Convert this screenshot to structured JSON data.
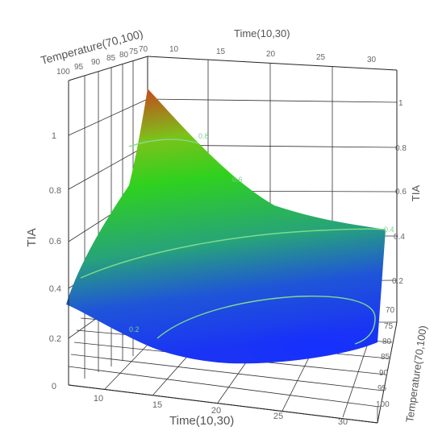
{
  "chart_data": {
    "type": "surface3d",
    "title": "",
    "zlabel": "TIA",
    "zlabel_right": "TIA",
    "x_axis": {
      "label": "Time(10,30)",
      "range": [
        10,
        30
      ],
      "ticks": [
        "10",
        "15",
        "20",
        "25",
        "30"
      ]
    },
    "y_axis": {
      "label": "Temperature(70,100)",
      "range": [
        70,
        100
      ],
      "ticks": [
        "70",
        "75",
        "80",
        "85",
        "90",
        "95",
        "100"
      ]
    },
    "z_axis": {
      "range": [
        0,
        1.1
      ],
      "ticks_left": [
        "0",
        "0.2",
        "0.4",
        "0.6",
        "0.8",
        "1"
      ],
      "ticks_right": [
        "0.2",
        "0.4",
        "0.6",
        "0.8",
        "1"
      ]
    },
    "top_x_label": "Time(10,30)",
    "top_x_ticks": [
      "10",
      "15",
      "20",
      "25",
      "30"
    ],
    "top_y_label": "Temperature(70,100)",
    "top_y_ticks": [
      "100",
      "95",
      "90",
      "85",
      "80",
      "75",
      "70"
    ],
    "right_y_label": "Temperature(70,100)",
    "right_y_ticks": [
      "70",
      "75",
      "80",
      "85",
      "90",
      "95",
      "100"
    ],
    "contours": [
      {
        "level": "0.8",
        "label": "0.8"
      },
      {
        "level": "0.6",
        "label": "0.6"
      },
      {
        "level": "0.4",
        "label": "0.4"
      },
      {
        "level": "0.2",
        "label": "0.2"
      }
    ],
    "surface_corners": {
      "time10_temp70": 1.1,
      "time30_temp70": 0.4,
      "time10_temp100": 0.35,
      "time30_temp100": 0.25
    },
    "colors": {
      "high": "#d4301e",
      "mid": "#2fd11f",
      "low": "#1a3cf0"
    },
    "grid": true
  }
}
